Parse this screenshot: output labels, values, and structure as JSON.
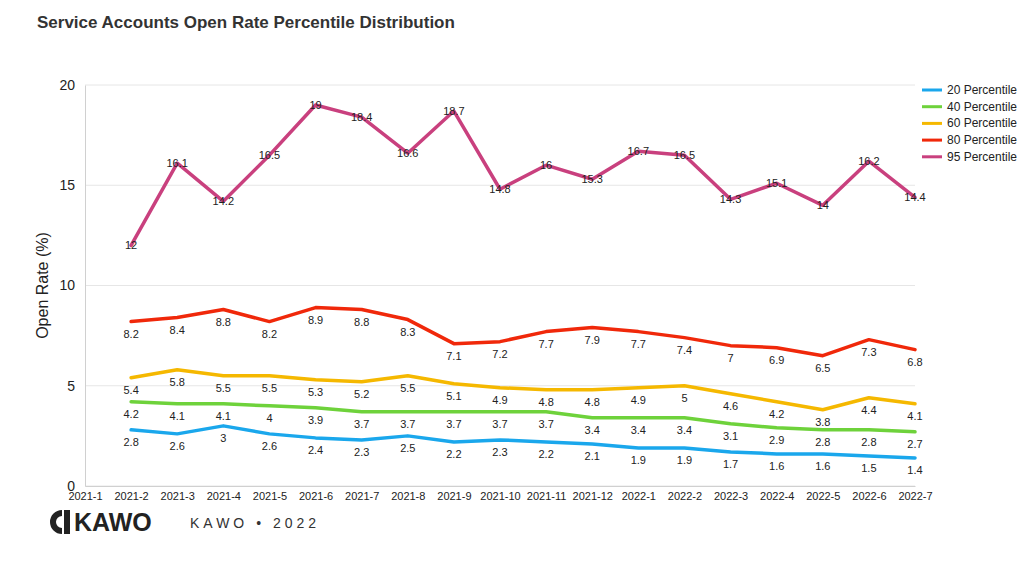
{
  "chart_data": {
    "type": "line",
    "title": "Service Accounts Open Rate Percentile Distribution",
    "y_label": "Open Rate (%)",
    "annotations": [
      "KAWO",
      "KAWO • 2022"
    ],
    "categories": [
      "2021-1",
      "2021-2",
      "2021-3",
      "2021-4",
      "2021-5",
      "2021-6",
      "2021-7",
      "2021-8",
      "2021-9",
      "2021-10",
      "2021-11",
      "2021-12",
      "2022-1",
      "2022-2",
      "2022-3",
      "2022-4",
      "2022-5",
      "2022-6",
      "2022-7"
    ],
    "series": [
      {
        "name": "20 Percentile",
        "color": "#1aa7ec",
        "values": [
          null,
          2.8,
          2.6,
          3,
          2.6,
          2.4,
          2.3,
          2.5,
          2.2,
          2.3,
          2.2,
          2.1,
          1.9,
          1.9,
          1.7,
          1.6,
          1.6,
          1.5,
          1.4
        ]
      },
      {
        "name": "40 Percentile",
        "color": "#6ed23b",
        "values": [
          null,
          4.2,
          4.1,
          4.1,
          4,
          3.9,
          3.7,
          3.7,
          3.7,
          3.7,
          3.7,
          3.4,
          3.4,
          3.4,
          3.1,
          2.9,
          2.8,
          2.8,
          2.7
        ]
      },
      {
        "name": "60 Percentile",
        "color": "#f5b800",
        "values": [
          null,
          5.4,
          5.8,
          5.5,
          5.5,
          5.3,
          5.2,
          5.5,
          5.1,
          4.9,
          4.8,
          4.8,
          4.9,
          5,
          4.6,
          4.2,
          3.8,
          4.4,
          4.1
        ]
      },
      {
        "name": "80 Percentile",
        "color": "#f0280a",
        "values": [
          null,
          8.2,
          8.4,
          8.8,
          8.2,
          8.9,
          8.8,
          8.3,
          7.1,
          7.2,
          7.7,
          7.9,
          7.7,
          7.4,
          7,
          6.9,
          6.5,
          7.3,
          6.8
        ]
      },
      {
        "name": "95 Percentile",
        "color": "#c9407e",
        "values": [
          null,
          12,
          16.1,
          14.2,
          16.5,
          19,
          18.4,
          16.6,
          18.7,
          14.8,
          16,
          15.3,
          16.7,
          16.5,
          14.3,
          15.1,
          14,
          16.2,
          14.4
        ]
      }
    ],
    "ylim": [
      0,
      20
    ],
    "yticks": [
      0,
      5,
      10,
      15,
      20
    ],
    "grid": true,
    "legend": "right",
    "data_labels": true
  }
}
